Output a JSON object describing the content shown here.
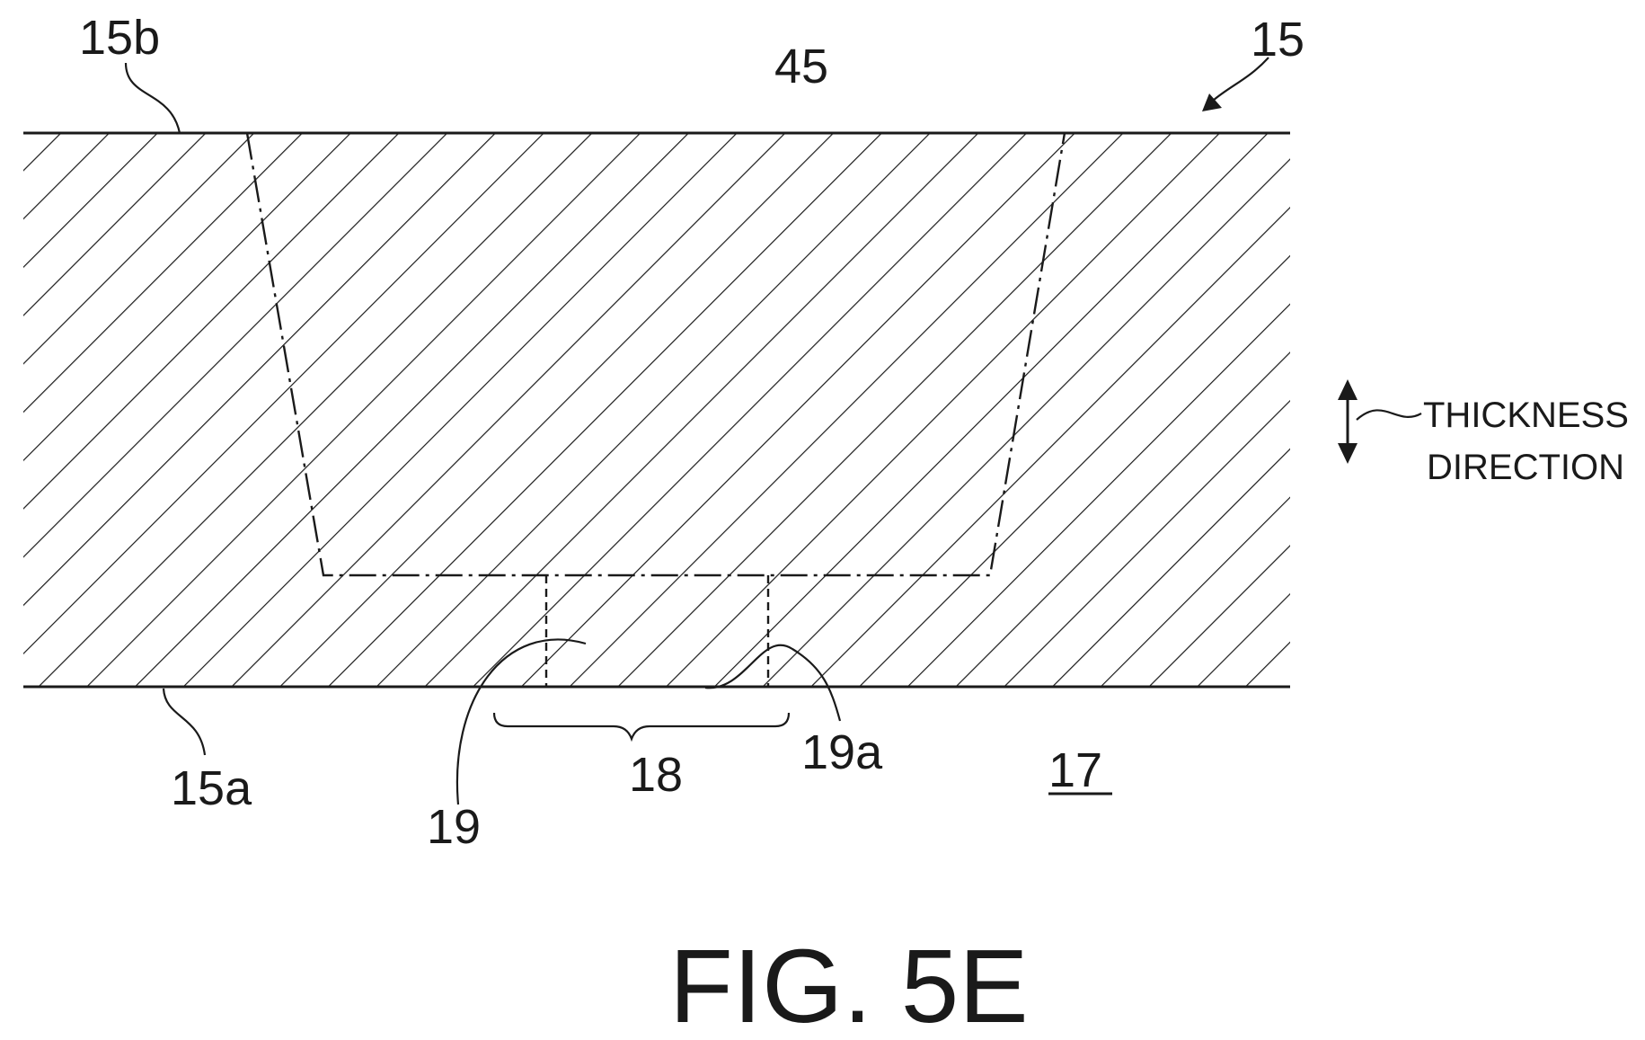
{
  "figure": {
    "caption": "FIG. 5E",
    "direction_label": [
      "THICKNESS",
      "DIRECTION"
    ],
    "labels": {
      "substrate": "15",
      "upper_surface": "15b",
      "lower_surface": "15a",
      "region": "45",
      "opening": "18",
      "recess": "19",
      "recess_wall": "19a",
      "outside": "17"
    }
  }
}
